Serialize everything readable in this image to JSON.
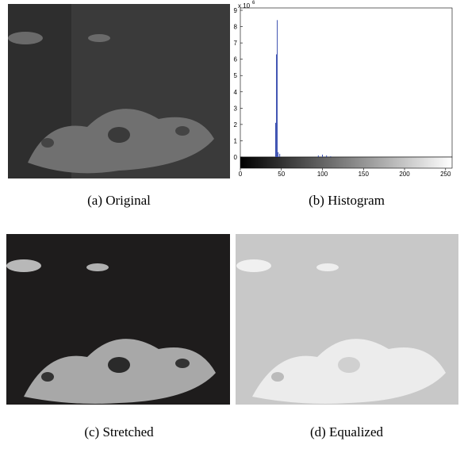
{
  "panels": {
    "a": {
      "caption": "(a) Original"
    },
    "b": {
      "caption": "(b) Histogram"
    },
    "c": {
      "caption": "(c) Stretched"
    },
    "d": {
      "caption": "(d) Equalized"
    }
  },
  "chart_data": {
    "type": "bar",
    "y_multiplier": {
      "base": "x 10",
      "exponent": "6"
    },
    "x": [
      43,
      44,
      45,
      46,
      48,
      95,
      100,
      105,
      110
    ],
    "values": [
      2.1,
      6.3,
      8.4,
      0.3,
      0.2,
      0.1,
      0.15,
      0.1,
      0.05
    ],
    "color": "#3a4fb0",
    "xlim": [
      0,
      256
    ],
    "xticks": [
      0,
      50,
      100,
      150,
      200,
      250
    ],
    "ylim": [
      0,
      9
    ],
    "yticks": [
      0,
      1,
      2,
      3,
      4,
      5,
      6,
      7,
      8,
      9
    ]
  }
}
